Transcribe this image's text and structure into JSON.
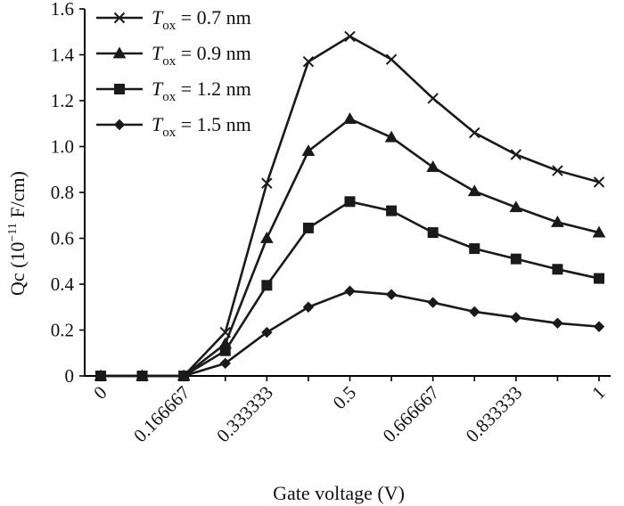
{
  "chart_data": {
    "type": "line",
    "title": "",
    "xlabel": "Gate voltage (V)",
    "ylabel_prefix": "Qc (10",
    "ylabel_exp": "−11",
    "ylabel_suffix": " F/cm)",
    "categories": [
      "0",
      "",
      "0.166667",
      "",
      "0.333333",
      "",
      "0.5",
      "",
      "0.666667",
      "",
      "0.833333",
      "",
      "1"
    ],
    "x": [
      0,
      0.0833,
      0.166667,
      0.25,
      0.333333,
      0.4167,
      0.5,
      0.5833,
      0.666667,
      0.75,
      0.833333,
      0.9167,
      1
    ],
    "ylim": [
      0,
      1.6
    ],
    "yticks": [
      "0",
      "0.2",
      "0.4",
      "0.6",
      "0.8",
      "1.0",
      "1.2",
      "1.4",
      "1.6"
    ],
    "ytick_values": [
      0,
      0.2,
      0.4,
      0.6,
      0.8,
      1.0,
      1.2,
      1.4,
      1.6
    ],
    "legend_position": "top-left",
    "grid": false,
    "series": [
      {
        "name_main": "T",
        "name_sub": "ox",
        "name_value": " = 0.7 nm",
        "marker": "x",
        "values": [
          0,
          0,
          0,
          0.19,
          0.84,
          1.37,
          1.48,
          1.38,
          1.21,
          1.06,
          0.965,
          0.895,
          0.845
        ]
      },
      {
        "name_main": "T",
        "name_sub": "ox",
        "name_value": " = 0.9 nm",
        "marker": "triangle",
        "values": [
          0,
          0,
          0,
          0.14,
          0.6,
          0.98,
          1.12,
          1.04,
          0.91,
          0.805,
          0.735,
          0.67,
          0.625
        ]
      },
      {
        "name_main": "T",
        "name_sub": "ox",
        "name_value": " = 1.2 nm",
        "marker": "square",
        "values": [
          0,
          0,
          0,
          0.11,
          0.395,
          0.645,
          0.76,
          0.72,
          0.625,
          0.555,
          0.51,
          0.465,
          0.425
        ]
      },
      {
        "name_main": "T",
        "name_sub": "ox",
        "name_value": " = 1.5 nm",
        "marker": "diamond",
        "values": [
          0,
          0,
          0,
          0.055,
          0.19,
          0.3,
          0.37,
          0.355,
          0.32,
          0.28,
          0.255,
          0.23,
          0.215
        ]
      }
    ]
  }
}
